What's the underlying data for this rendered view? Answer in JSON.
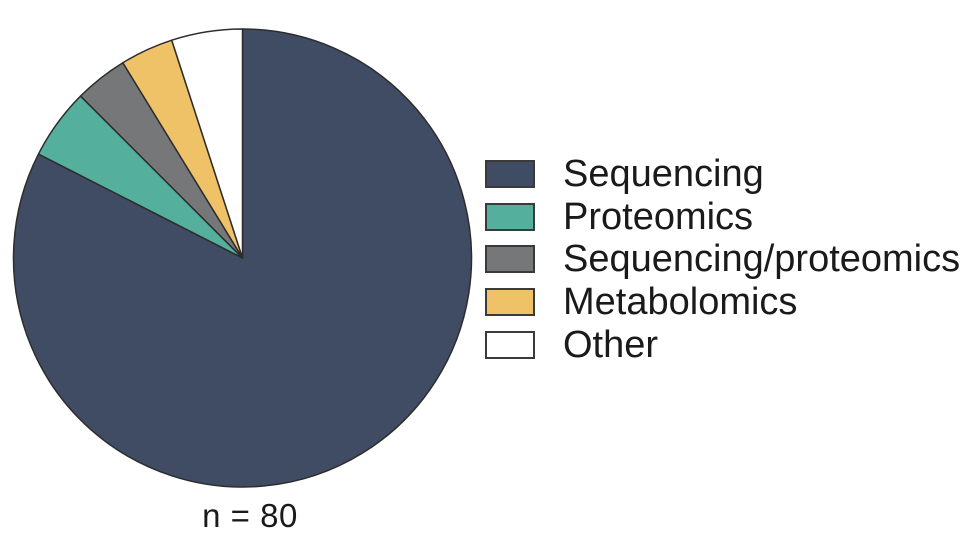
{
  "figure": {
    "background_color": "#ffffff",
    "sample_size_label": "n = 80"
  },
  "chart_data": {
    "type": "pie",
    "title": "",
    "n_total": 80,
    "start_angle_deg": 0,
    "direction": "clockwise",
    "legend_position": "right",
    "outline_color": "#2d2d2d",
    "text_color": "#1a1a1a",
    "slices": [
      {
        "label": "Sequencing",
        "value": 66,
        "fraction": 0.825,
        "color": "#3f4c64"
      },
      {
        "label": "Proteomics",
        "value": 4,
        "fraction": 0.05,
        "color": "#54b09d"
      },
      {
        "label": "Sequencing/proteomics",
        "value": 3,
        "fraction": 0.0375,
        "color": "#757779"
      },
      {
        "label": "Metabolomics",
        "value": 3,
        "fraction": 0.0375,
        "color": "#efc268"
      },
      {
        "label": "Other",
        "value": 4,
        "fraction": 0.05,
        "color": "#ffffff"
      }
    ]
  }
}
